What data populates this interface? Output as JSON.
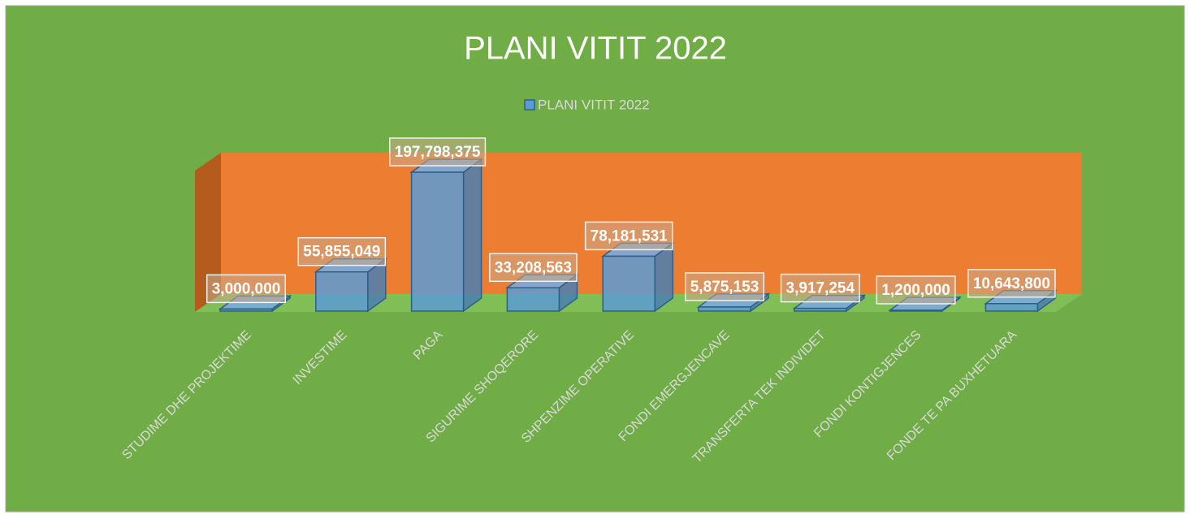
{
  "chart_data": {
    "type": "bar",
    "title": "PLANI VITIT 2022",
    "categories": [
      "STUDIME DHE PROJEKTIME",
      "INVESTIME",
      "PAGA",
      "SIGURIME SHOQERORE",
      "SHPENZIME OPERATIVE",
      "FONDI EMERGJENCAVE",
      "TRANSFERTA TEK INDIVIDET",
      "FONDI KONTIGJENCES",
      "FONDE TE PA BUXHETUARA"
    ],
    "series": [
      {
        "name": "PLANI VITIT 2022",
        "color": "#5b9bd5",
        "values": [
          3000000,
          55855049,
          197798375,
          33208563,
          78181531,
          5875153,
          3917254,
          1200000,
          10643800
        ],
        "value_labels": [
          "3,000,000",
          "55,855,049",
          "197,798,375",
          "33,208,563",
          "78,181,531",
          "5,875,153",
          "3,917,254",
          "1,200,000",
          "10,643,800"
        ]
      }
    ],
    "legend": "top"
  }
}
